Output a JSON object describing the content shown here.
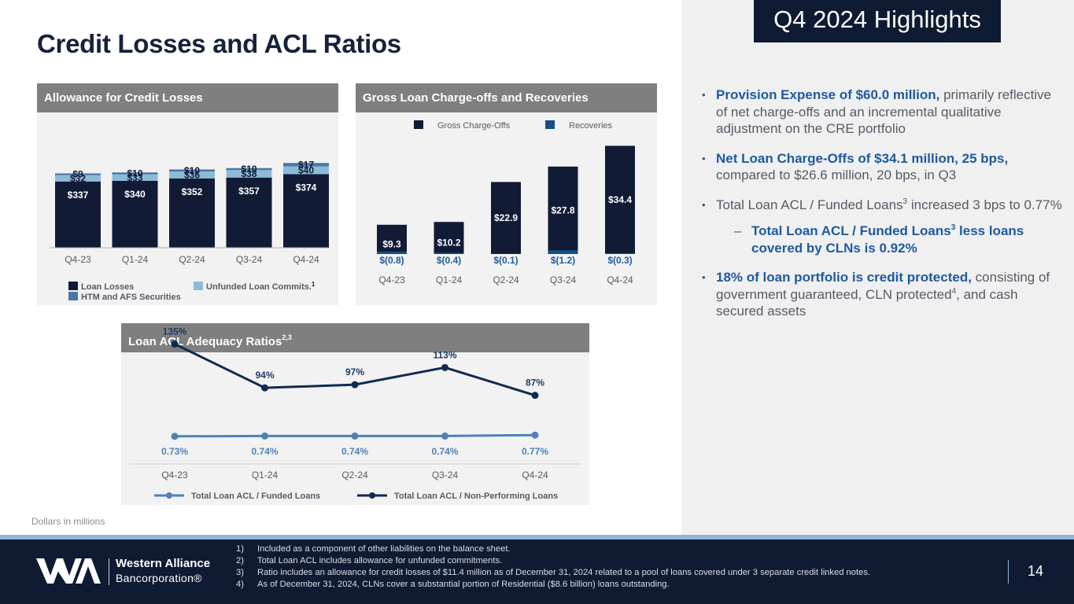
{
  "page": {
    "title": "Credit Losses and ACL Ratios",
    "highlights_title": "Q4 2024 Highlights",
    "units_note": "Dollars in millions",
    "page_number": "14"
  },
  "colors": {
    "navy": "#0f1a33",
    "dark_bar": "#111b36",
    "light_blue": "#8ebad9",
    "mid_blue": "#4677a6",
    "recovery_blue": "#134e87",
    "accent_blue": "#1e5aa0",
    "header_gray": "#7f7f7f"
  },
  "panels": {
    "acl_header": "Allowance for Credit Losses",
    "gco_header": "Gross Loan Charge-offs and Recoveries",
    "ratio_header": "Loan ACL Adequacy Ratios",
    "ratio_header_sup": "2,3"
  },
  "chart_data": [
    {
      "type": "bar",
      "stacked": true,
      "title": "Allowance for Credit Losses",
      "categories": [
        "Q4-23",
        "Q1-24",
        "Q2-24",
        "Q3-24",
        "Q4-24"
      ],
      "series": [
        {
          "name": "Loan Losses",
          "values": [
            337,
            340,
            352,
            357,
            374
          ],
          "labels": [
            "$337",
            "$340",
            "$352",
            "$357",
            "$374"
          ],
          "color": "#111b36"
        },
        {
          "name": "Unfunded Loan Commits.",
          "values": [
            32,
            33,
            36,
            38,
            40
          ],
          "labels": [
            "$32",
            "$33",
            "$36",
            "$38",
            "$40"
          ],
          "color": "#8ebad9"
        },
        {
          "name": "HTM and AFS Securities",
          "values": [
            9,
            10,
            10,
            10,
            17
          ],
          "labels": [
            "$9",
            "$10",
            "$10",
            "$10",
            "$17"
          ],
          "color": "#4677a6"
        }
      ],
      "legend": [
        {
          "label": "Loan Losses",
          "sup": "",
          "color": "#111b36"
        },
        {
          "label": "Unfunded Loan Commits.",
          "sup": "1",
          "color": "#8ebad9"
        },
        {
          "label": "HTM and AFS Securities",
          "sup": "",
          "color": "#4677a6"
        }
      ],
      "legend_position": "bottom"
    },
    {
      "type": "bar",
      "title": "Gross Loan Charge-offs and Recoveries",
      "categories": [
        "Q4-23",
        "Q1-24",
        "Q2-24",
        "Q3-24",
        "Q4-24"
      ],
      "series": [
        {
          "name": "Gross Charge-Offs",
          "values": [
            9.3,
            10.2,
            22.9,
            27.8,
            34.4
          ],
          "labels": [
            "$9.3",
            "$10.2",
            "$22.9",
            "$27.8",
            "$34.4"
          ],
          "color": "#111b36"
        },
        {
          "name": "Recoveries",
          "values": [
            -0.8,
            -0.4,
            -0.1,
            -1.2,
            -0.3
          ],
          "labels": [
            "$(0.8)",
            "$(0.4)",
            "$(0.1)",
            "$(1.2)",
            "$(0.3)"
          ],
          "color": "#134e87"
        }
      ],
      "legend": [
        {
          "label": "Gross Charge-Offs",
          "color": "#111b36"
        },
        {
          "label": "Recoveries",
          "color": "#134e87"
        }
      ],
      "legend_position": "top"
    },
    {
      "type": "line",
      "title": "Loan ACL Adequacy Ratios",
      "categories": [
        "Q4-23",
        "Q1-24",
        "Q2-24",
        "Q3-24",
        "Q4-24"
      ],
      "series": [
        {
          "name": "Total Loan ACL  / Non-Performing Loans",
          "values": [
            135,
            94,
            97,
            113,
            87
          ],
          "labels": [
            "135%",
            "94%",
            "97%",
            "113%",
            "87%"
          ],
          "color": "#0f2b52"
        },
        {
          "name": "Total Loan ACL  / Funded Loans",
          "values": [
            0.73,
            0.74,
            0.74,
            0.74,
            0.77
          ],
          "labels": [
            "0.73%",
            "0.74%",
            "0.74%",
            "0.74%",
            "0.77%"
          ],
          "color": "#4f81b8"
        }
      ],
      "legend": [
        {
          "label": "Total Loan ACL  / Funded Loans",
          "color": "#4f81b8"
        },
        {
          "label": "Total Loan ACL  / Non-Performing Loans",
          "color": "#0f2b52"
        }
      ],
      "legend_position": "bottom"
    }
  ],
  "highlights": {
    "b1": {
      "bold": "Provision Expense of $60.0 million,",
      "text": " primarily reflective of net charge-offs and an incremental qualitative adjustment on the CRE portfolio"
    },
    "b2": {
      "bold": "Net Loan Charge-Offs of $34.1 million, 25 bps,",
      "text": " compared to $26.6 million, 20 bps, in Q3"
    },
    "b3": {
      "text_a": "Total Loan ACL / Funded Loans",
      "sup": "3",
      "text_b": " increased 3 bps to 0.77%"
    },
    "b3_sub": {
      "bold_a": "Total Loan ACL / Funded Loans",
      "sup": "3",
      "bold_b": " less loans covered by CLNs is 0.92%"
    },
    "b4": {
      "bold": "18% of loan portfolio is credit protected,",
      "text_a": " consisting of government guaranteed, CLN protected",
      "sup": "4",
      "text_b": ", and cash secured assets"
    },
    "bullet_glyph": "•",
    "dash_glyph": "–"
  },
  "footer": {
    "company_name": "Western Alliance",
    "company_sub": "Bancorporation®",
    "footnotes": [
      {
        "num": "1)",
        "text": "Included as a component of other liabilities on the balance sheet."
      },
      {
        "num": "2)",
        "text": "Total Loan ACL includes allowance for unfunded commitments."
      },
      {
        "num": "3)",
        "text": "Ratio includes an allowance for credit losses of $11.4 million as of December 31, 2024 related to a pool of loans covered under 3 separate credit linked notes."
      },
      {
        "num": "4)",
        "text": "As of December 31, 2024, CLNs cover a substantial portion of Residential ($8.6 billion) loans outstanding."
      }
    ]
  }
}
